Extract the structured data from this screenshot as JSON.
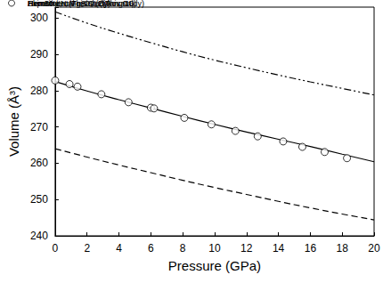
{
  "chart_data": {
    "type": "line",
    "x_label": "Pressure (GPa)",
    "y_label": "Volume (Å³)",
    "xlim": [
      0,
      20
    ],
    "xticks": [
      0,
      2,
      4,
      6,
      8,
      10,
      12,
      14,
      16,
      18,
      20
    ],
    "ylim": [
      240,
      303
    ],
    "yticks": [
      240,
      250,
      260,
      270,
      280,
      290,
      300
    ],
    "grid": false,
    "legend": "upper right",
    "series": [
      {
        "name": "Hematite, α-Fe₂O₃ (Bykova16)",
        "type": "line",
        "line_style": "dashdotdot",
        "color": "#000000",
        "x": [
          0,
          2,
          4,
          6,
          8,
          10,
          12,
          14,
          16,
          18,
          20
        ],
        "values": [
          301.7,
          298.6,
          295.8,
          293.2,
          290.7,
          288.4,
          286.3,
          284.3,
          282.4,
          280.6,
          278.8
        ]
      },
      {
        "name": "Akimotoite, MgSiO₃ (Wang04)",
        "type": "line",
        "line_style": "dashed",
        "color": "#000000",
        "x": [
          0,
          2,
          4,
          6,
          8,
          10,
          12,
          14,
          16,
          18,
          20
        ],
        "values": [
          264.0,
          261.7,
          259.5,
          257.4,
          255.3,
          253.3,
          251.4,
          249.5,
          247.7,
          246.0,
          244.4
        ]
      },
      {
        "name": "Hem50-LN (This study)",
        "type": "line",
        "line_style": "solid",
        "color": "#000000",
        "x": [
          0,
          2,
          4,
          6,
          8,
          10,
          12,
          14,
          16,
          18,
          20
        ],
        "values": [
          282.5,
          279.9,
          277.5,
          275.2,
          272.9,
          270.7,
          268.6,
          266.6,
          264.6,
          262.5,
          260.4
        ]
      },
      {
        "name": "Experimental results (This study)",
        "type": "scatter",
        "marker": "circle",
        "color": "#000000",
        "x": [
          0,
          0.9,
          1.4,
          2.9,
          4.6,
          6.0,
          6.2,
          8.1,
          9.8,
          11.3,
          12.7,
          14.3,
          15.5,
          16.9,
          18.3
        ],
        "values": [
          282.8,
          281.8,
          281.1,
          279.0,
          276.8,
          275.3,
          275.1,
          272.5,
          270.7,
          268.9,
          267.4,
          266.0,
          264.5,
          263.1,
          261.4
        ]
      }
    ]
  }
}
